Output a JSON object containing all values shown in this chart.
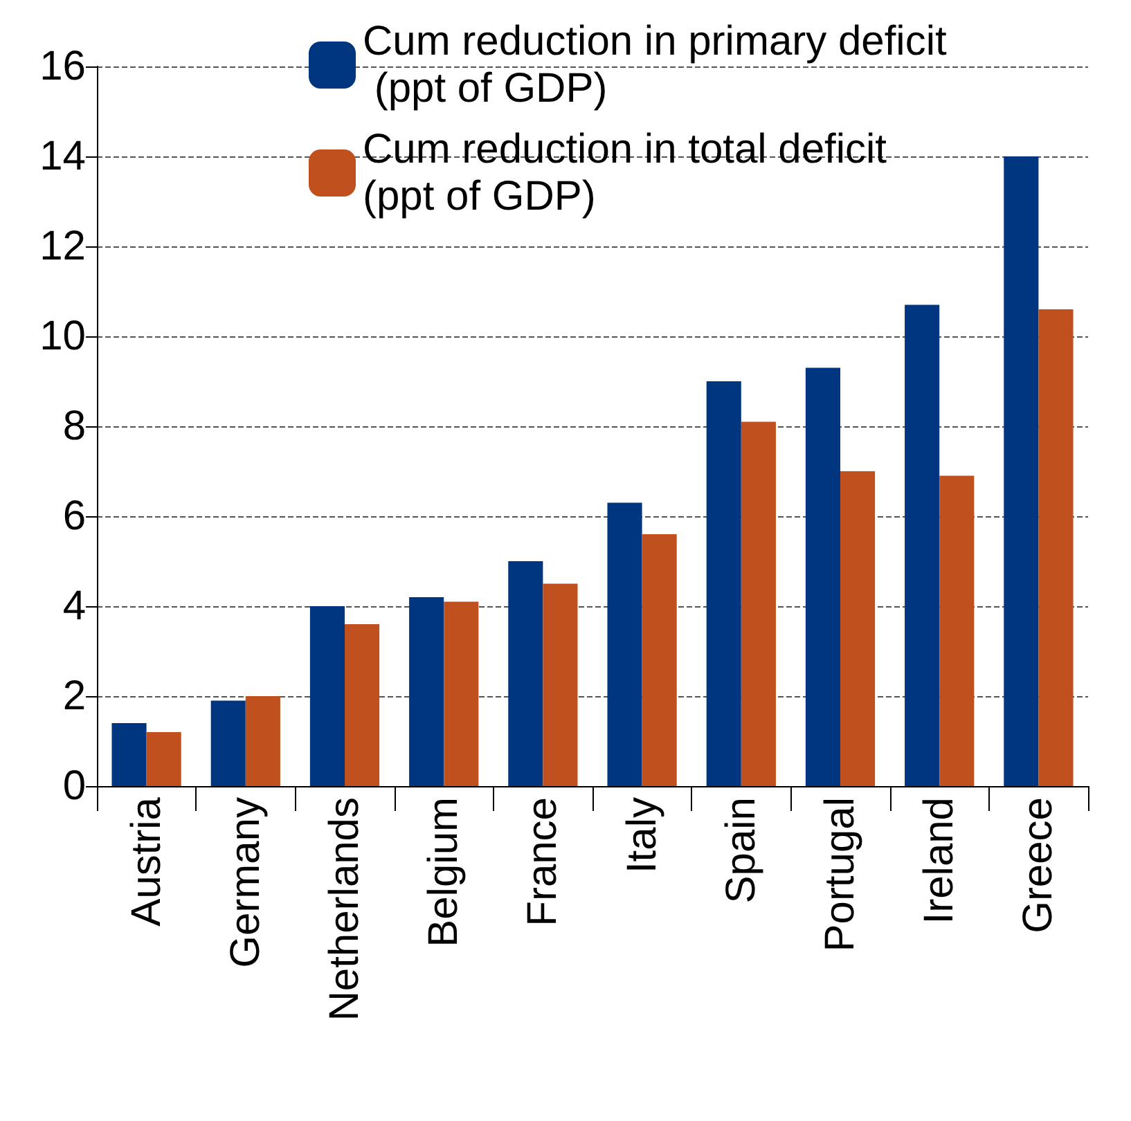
{
  "chart_data": {
    "type": "bar",
    "categories": [
      "Austria",
      "Germany",
      "Netherlands",
      "Belgium",
      "France",
      "Italy",
      "Spain",
      "Portugal",
      "Ireland",
      "Greece"
    ],
    "series": [
      {
        "name": "Cum reduction in primary deficit (ppt of GDP)",
        "color": "#003580",
        "values": [
          1.4,
          1.9,
          4.0,
          4.2,
          5.0,
          6.3,
          9.0,
          9.3,
          10.7,
          14.0
        ]
      },
      {
        "name": "Cum reduction in total deficit (ppt of GDP)",
        "color": "#c0501e",
        "values": [
          1.2,
          2.0,
          3.6,
          4.1,
          4.5,
          5.6,
          8.1,
          7.0,
          6.9,
          10.6
        ]
      }
    ],
    "ylim": [
      0,
      16
    ],
    "yticks": [
      0,
      2,
      4,
      6,
      8,
      10,
      12,
      14,
      16
    ],
    "grid": "y",
    "line_style": "dashed",
    "legend": "top"
  }
}
